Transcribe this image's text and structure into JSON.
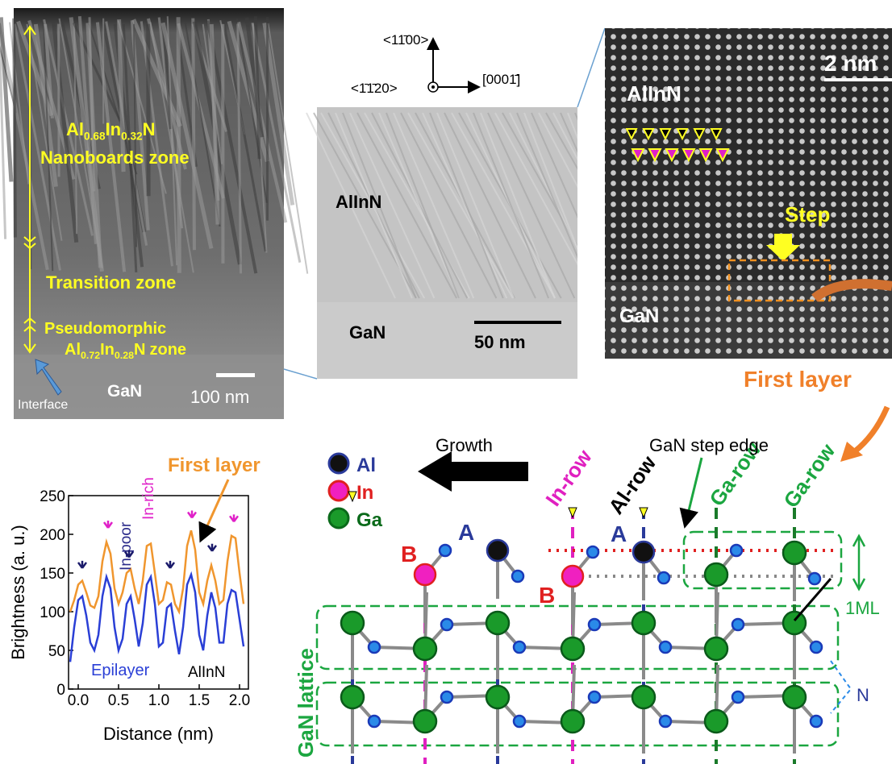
{
  "panel_a": {
    "zone1_formula": [
      "Al",
      "0.68",
      "In",
      "0.32",
      "N"
    ],
    "zone1_label": "Nanoboards zone",
    "zone2_label": "Transition zone",
    "zone3_label": "Pseudomorphic",
    "zone3_formula": [
      "Al",
      "0.72",
      "In",
      "0.28",
      "N"
    ],
    "zone3_suffix": "zone",
    "substrate": "GaN",
    "scale_bar": "100 nm",
    "interface": "Interface"
  },
  "panel_b": {
    "axis_up": "<11̄00>",
    "axis_right": "[0001̄]",
    "axis_out": "<1̄1̄20>",
    "layer": "AlInN",
    "substrate": "GaN",
    "scale_bar": "50 nm"
  },
  "panel_c": {
    "layer": "AlInN",
    "scale_bar": "2 nm",
    "step": "Step",
    "substrate": "GaN",
    "first_layer": "First layer"
  },
  "diagram": {
    "legend": [
      "Al",
      "In",
      "Ga"
    ],
    "growth": "Growth",
    "rows": [
      "In-row",
      "Al-row",
      "Ga-row",
      "Ga-row"
    ],
    "step_edge": "GaN step edge",
    "sites": [
      "A",
      "B",
      "A",
      "B"
    ],
    "monolayer": "1ML",
    "nitrogen": "N",
    "lattice": "GaN lattice"
  },
  "chart_data": {
    "type": "line",
    "x_label": "Distance (nm)",
    "y_label": "Brightness (a. u.)",
    "xlim": [
      -0.12,
      2.11
    ],
    "ylim": [
      0,
      250
    ],
    "xticks": [
      {
        "value": 0,
        "label": "0.0"
      },
      0.5,
      {
        "value": 1,
        "label": "1.0"
      },
      1.5,
      {
        "value": 2,
        "label": "2.0"
      }
    ],
    "yticks": [
      0,
      50,
      100,
      150,
      200,
      250
    ],
    "x": [
      -0.1,
      -0.05,
      0,
      0.05,
      0.1,
      0.15,
      0.2,
      0.25,
      0.3,
      0.35,
      0.4,
      0.45,
      0.5,
      0.55,
      0.6,
      0.65,
      0.7,
      0.75,
      0.8,
      0.85,
      0.9,
      0.95,
      1,
      1.05,
      1.1,
      1.15,
      1.2,
      1.25,
      1.3,
      1.35,
      1.4,
      1.45,
      1.5,
      1.55,
      1.6,
      1.65,
      1.7,
      1.75,
      1.8,
      1.85,
      1.9,
      1.95,
      2,
      2.05
    ],
    "series": [
      {
        "name": "First layer",
        "color": "#f0962e",
        "values": [
          100,
          115,
          135,
          140,
          125,
          108,
          105,
          120,
          165,
          190,
          175,
          130,
          110,
          125,
          150,
          155,
          130,
          110,
          140,
          185,
          188,
          150,
          110,
          115,
          138,
          135,
          110,
          100,
          130,
          185,
          205,
          180,
          125,
          110,
          140,
          160,
          140,
          110,
          115,
          165,
          198,
          195,
          150,
          110
        ]
      },
      {
        "name": "Epilayer",
        "color": "#2a3fd6",
        "values": [
          35,
          80,
          115,
          120,
          95,
          60,
          50,
          70,
          120,
          145,
          130,
          80,
          50,
          65,
          110,
          120,
          90,
          55,
          85,
          135,
          145,
          110,
          55,
          60,
          105,
          110,
          75,
          45,
          80,
          135,
          148,
          125,
          70,
          50,
          95,
          125,
          105,
          60,
          60,
          110,
          128,
          125,
          90,
          55
        ]
      }
    ],
    "annotations": [
      "In-poor",
      "In-rich",
      "AlInN"
    ]
  }
}
